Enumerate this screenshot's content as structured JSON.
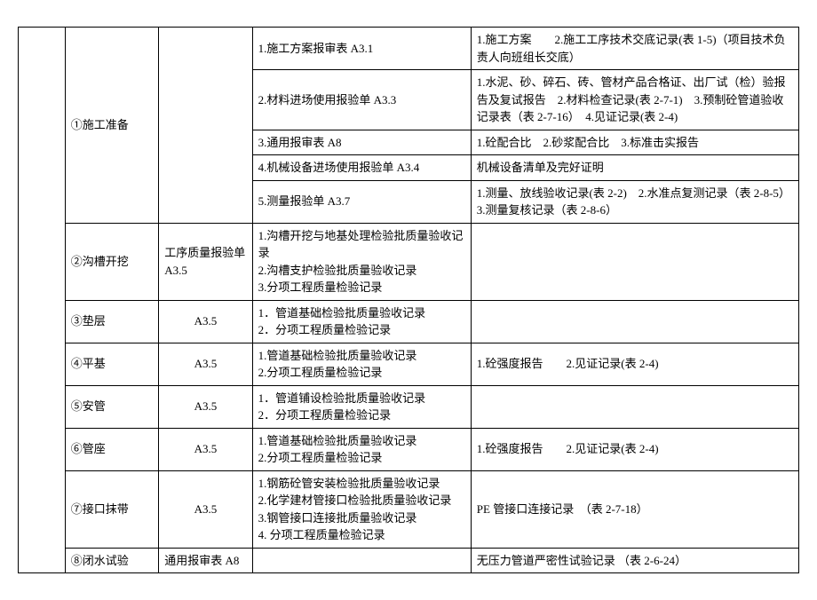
{
  "rows": {
    "r1c2": "①施工准备",
    "r1c4": "1.施工方案报审表 A3.1",
    "r1c5": "1.施工方案　　2.施工工序技术交底记录(表 1-5)（项目技术负责人向班组长交底）",
    "r2c4": "2.材料进场使用报验单 A3.3",
    "r2c5": "1.水泥、砂、碎石、砖、管材产品合格证、出厂试（检）验报告及复试报告　2.材料检查记录(表 2-7-1)　3.预制砼管道验收记录表（表 2-7-16）　4.见证记录(表 2-4)",
    "r3c4": "3.通用报审表 A8",
    "r3c5": "1.砼配合比　2.砂浆配合比　3.标准击实报告",
    "r4c4": "4.机械设备进场使用报验单 A3.4",
    "r4c5": "机械设备清单及完好证明",
    "r5c4": "5.测量报验单 A3.7",
    "r5c5": "1.测量、放线验收记录(表 2-2)　2.水准点复测记录（表 2-8-5）\n3.测量复核记录（表 2-8-6）",
    "r6c2": "②沟槽开挖",
    "r6c3": "工序质量报验单 A3.5",
    "r6c4": "1.沟槽开挖与地基处理检验批质量验收记录\n2.沟槽支护检验批质量验收记录\n3.分项工程质量检验记录",
    "r7c2": "③垫层",
    "r7c3": "A3.5",
    "r7c4": "1．管道基础检验批质量验收记录\n2．分项工程质量检验记录",
    "r8c2": "④平基",
    "r8c3": "A3.5",
    "r8c4": "1.管道基础检验批质量验收记录\n2.分项工程质量检验记录",
    "r8c5": "1.砼强度报告　　2.见证记录(表 2-4)",
    "r9c2": "⑤安管",
    "r9c3": "A3.5",
    "r9c4": "1．管道铺设检验批质量验收记录\n2．分项工程质量检验记录",
    "r10c2": "⑥管座",
    "r10c3": "A3.5",
    "r10c4": "1.管道基础检验批质量验收记录\n2.分项工程质量检验记录",
    "r10c5": "1.砼强度报告　　2.见证记录(表 2-4)",
    "r11c2": "⑦接口抹带",
    "r11c3": "A3.5",
    "r11c4": "1.钢筋砼管安装检验批质量验收记录\n2.化学建材管接口检验批质量验收记录\n3.钢管接口连接批质量验收记录\n4. 分项工程质量检验记录",
    "r11c5": "PE 管接口连接记录　（表 2-7-18）",
    "r12c2": "⑧闭水试验",
    "r12c3": "通用报审表 A8",
    "r12c5": "无压力管道严密性试验记录 （表 2-6-24）"
  }
}
